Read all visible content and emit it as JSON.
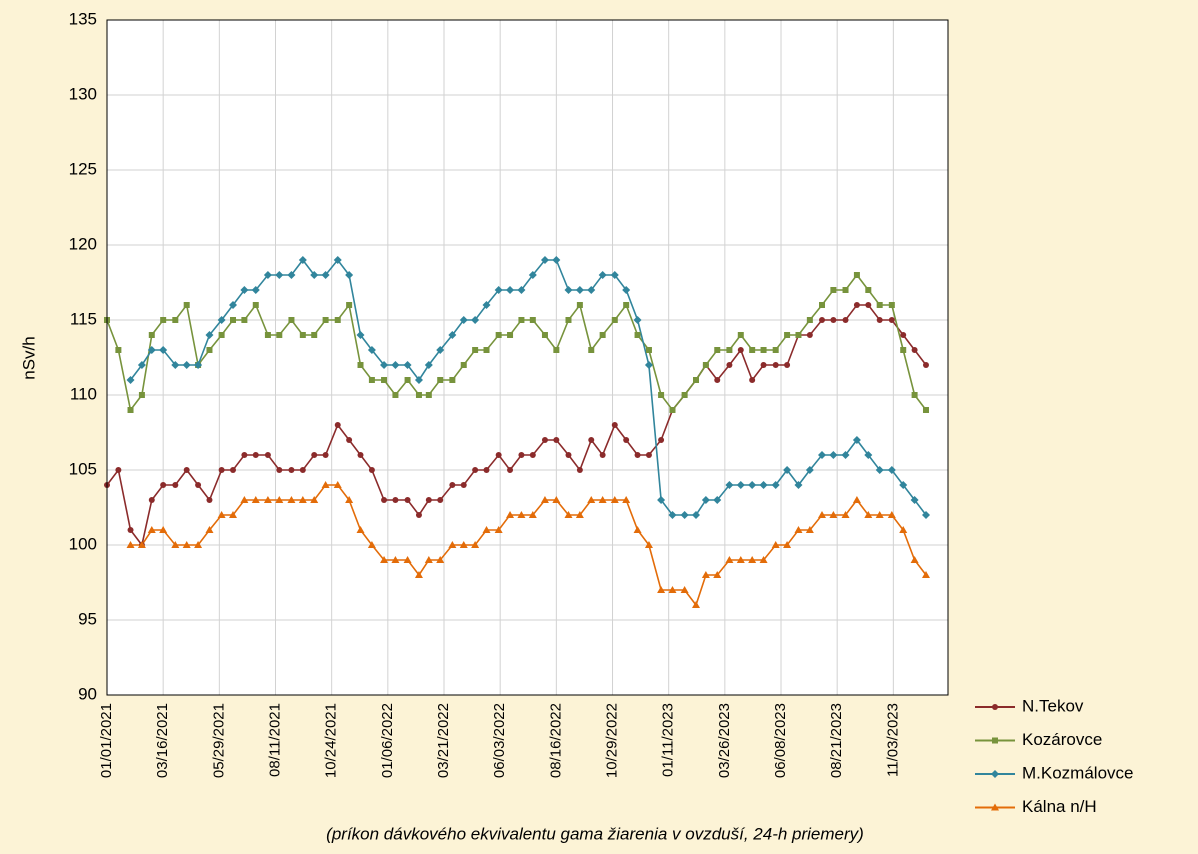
{
  "chart_data": {
    "type": "line",
    "y_label": "nSv/h",
    "x_label": "(príkon dávkového ekvivalentu gama žiarenia v ovzduší, 24-h priemery)",
    "x": [
      "01/01/2021",
      "01/16/2021",
      "02/01/2021",
      "02/16/2021",
      "03/01/2021",
      "03/16/2021",
      "04/01/2021",
      "04/16/2021",
      "05/01/2021",
      "05/16/2021",
      "06/01/2021",
      "06/16/2021",
      "07/01/2021",
      "07/16/2021",
      "08/01/2021",
      "08/16/2021",
      "09/01/2021",
      "09/16/2021",
      "10/01/2021",
      "10/16/2021",
      "11/01/2021",
      "11/16/2021",
      "12/01/2021",
      "12/16/2021",
      "01/01/2022",
      "01/16/2022",
      "02/01/2022",
      "02/16/2022",
      "03/01/2022",
      "03/16/2022",
      "04/01/2022",
      "04/16/2022",
      "05/01/2022",
      "05/16/2022",
      "06/01/2022",
      "06/16/2022",
      "07/01/2022",
      "07/16/2022",
      "08/01/2022",
      "08/16/2022",
      "09/01/2022",
      "09/16/2022",
      "10/01/2022",
      "10/16/2022",
      "11/01/2022",
      "11/16/2022",
      "12/01/2022",
      "12/16/2022",
      "01/01/2023",
      "01/16/2023",
      "02/01/2023",
      "02/16/2023",
      "03/01/2023",
      "03/16/2023",
      "04/01/2023",
      "04/16/2023",
      "05/01/2023",
      "05/16/2023",
      "06/01/2023",
      "06/16/2023",
      "07/01/2023",
      "07/16/2023",
      "08/01/2023",
      "08/16/2023",
      "09/01/2023",
      "09/16/2023",
      "10/01/2023",
      "10/16/2023",
      "11/01/2023",
      "11/16/2023",
      "12/01/2023",
      "12/16/2023"
    ],
    "series": [
      {
        "name": "N.Tekov",
        "color": "#8b2b2b",
        "marker": "circle",
        "values": [
          104,
          105,
          101,
          100,
          103,
          104,
          104,
          105,
          104,
          103,
          105,
          105,
          106,
          106,
          106,
          105,
          105,
          105,
          106,
          106,
          108,
          107,
          106,
          105,
          103,
          103,
          103,
          102,
          103,
          103,
          104,
          104,
          105,
          105,
          106,
          105,
          106,
          106,
          107,
          107,
          106,
          105,
          107,
          106,
          108,
          107,
          106,
          106,
          107,
          109,
          110,
          111,
          112,
          111,
          112,
          113,
          111,
          112,
          112,
          112,
          114,
          114,
          115,
          115,
          115,
          116,
          116,
          115,
          115,
          114,
          113,
          112
        ]
      },
      {
        "name": "Kozárovce",
        "color": "#77933c",
        "marker": "square",
        "values": [
          115,
          113,
          109,
          110,
          114,
          115,
          115,
          116,
          112,
          113,
          114,
          115,
          115,
          116,
          114,
          114,
          115,
          114,
          114,
          115,
          115,
          116,
          112,
          111,
          111,
          110,
          111,
          110,
          110,
          111,
          111,
          112,
          113,
          113,
          114,
          114,
          115,
          115,
          114,
          113,
          115,
          116,
          113,
          114,
          115,
          116,
          114,
          113,
          110,
          109,
          110,
          111,
          112,
          113,
          113,
          114,
          113,
          113,
          113,
          114,
          114,
          115,
          116,
          117,
          117,
          118,
          117,
          116,
          116,
          113,
          110,
          109
        ]
      },
      {
        "name": "M.Kozmálovce",
        "color": "#31859c",
        "marker": "diamond",
        "values": [
          null,
          null,
          111,
          112,
          113,
          113,
          112,
          112,
          112,
          114,
          115,
          116,
          117,
          117,
          118,
          118,
          118,
          119,
          118,
          118,
          119,
          118,
          114,
          113,
          112,
          112,
          112,
          111,
          112,
          113,
          114,
          115,
          115,
          116,
          117,
          117,
          117,
          118,
          119,
          119,
          117,
          117,
          117,
          118,
          118,
          117,
          115,
          112,
          103,
          102,
          102,
          102,
          103,
          103,
          104,
          104,
          104,
          104,
          104,
          105,
          104,
          105,
          106,
          106,
          106,
          107,
          106,
          105,
          105,
          104,
          103,
          102
        ]
      },
      {
        "name": "Kálna n/H",
        "color": "#e36c09",
        "marker": "triangle",
        "values": [
          null,
          null,
          100,
          100,
          101,
          101,
          100,
          100,
          100,
          101,
          102,
          102,
          103,
          103,
          103,
          103,
          103,
          103,
          103,
          104,
          104,
          103,
          101,
          100,
          99,
          99,
          99,
          98,
          99,
          99,
          100,
          100,
          100,
          101,
          101,
          102,
          102,
          102,
          103,
          103,
          102,
          102,
          103,
          103,
          103,
          103,
          101,
          100,
          97,
          97,
          97,
          96,
          98,
          98,
          99,
          99,
          99,
          99,
          100,
          100,
          101,
          101,
          102,
          102,
          102,
          103,
          102,
          102,
          102,
          101,
          99,
          98
        ]
      }
    ],
    "xlim": [
      "01/01/2021",
      "01/14/2024"
    ],
    "xticks": [
      "01/01/2021",
      "03/16/2021",
      "05/29/2021",
      "08/11/2021",
      "10/24/2021",
      "01/06/2022",
      "03/21/2022",
      "06/03/2022",
      "08/16/2022",
      "10/29/2022",
      "01/11/2023",
      "03/26/2023",
      "06/08/2023",
      "08/21/2023",
      "11/03/2023"
    ],
    "ylim": [
      90,
      135
    ],
    "yticks": [
      90,
      95,
      100,
      105,
      110,
      115,
      120,
      125,
      130,
      135
    ],
    "grid": true,
    "legend": "right"
  }
}
